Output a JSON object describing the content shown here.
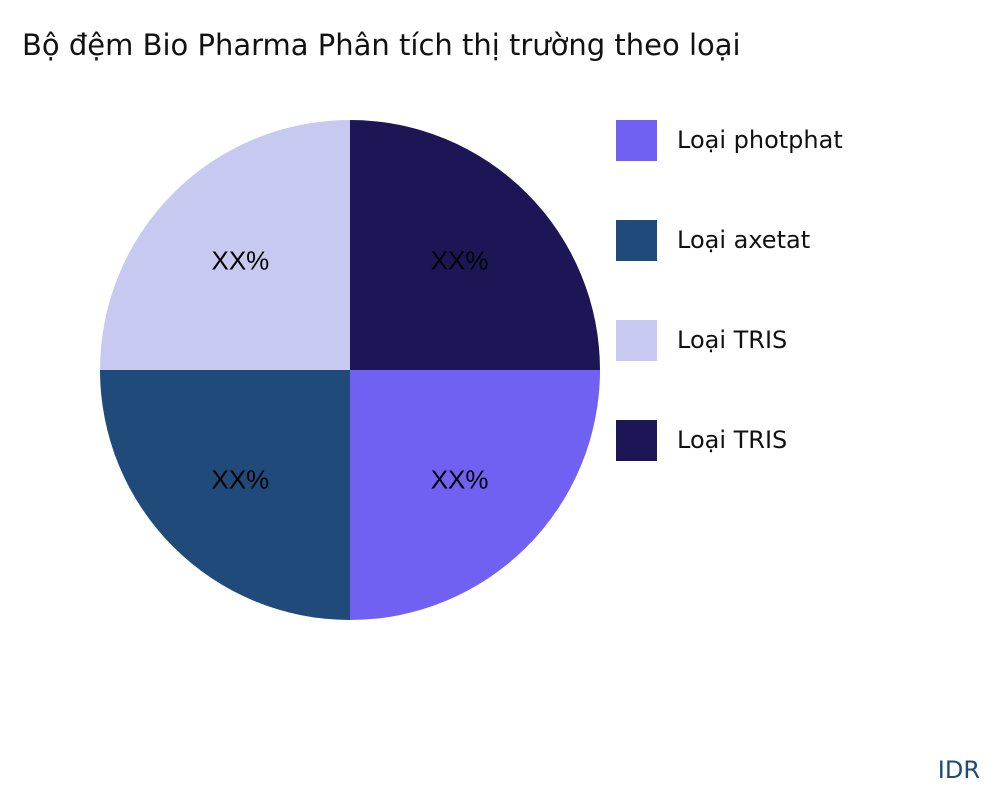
{
  "chart_data": {
    "type": "pie",
    "title": "Bộ đệm Bio Pharma Phân tích thị trường theo loại",
    "slices": [
      {
        "name": "Loại photphat",
        "value": 25,
        "label": "XX%",
        "color": "#7161F2"
      },
      {
        "name": "Loại axetat",
        "value": 25,
        "label": "XX%",
        "color": "#1F4A7A"
      },
      {
        "name": "Loại TRIS",
        "value": 25,
        "label": "XX%",
        "color": "#C8C9F0"
      },
      {
        "name": "Loại TRIS",
        "value": 25,
        "label": "XX%",
        "color": "#1C1656"
      }
    ],
    "legend_position": "right"
  },
  "brand": "IDR"
}
